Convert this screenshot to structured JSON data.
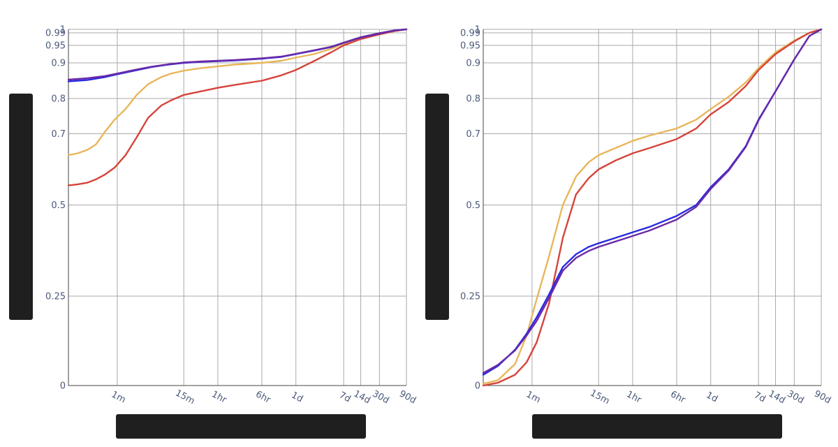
{
  "chart_data": [
    {
      "type": "line",
      "title": "",
      "xlabel": "",
      "ylabel": "",
      "xscale": "log-time",
      "x_ticks": [
        {
          "label": "1m",
          "value": 1
        },
        {
          "label": "15m",
          "value": 15
        },
        {
          "label": "1hr",
          "value": 60
        },
        {
          "label": "6hr",
          "value": 360
        },
        {
          "label": "1d",
          "value": 1440
        },
        {
          "label": "7d",
          "value": 10080
        },
        {
          "label": "14d",
          "value": 20160
        },
        {
          "label": "30d",
          "value": 43200
        },
        {
          "label": "90d",
          "value": 129600
        }
      ],
      "y_ticks": [
        {
          "label": "0",
          "value": 0
        },
        {
          "label": "0.25",
          "value": 0.25
        },
        {
          "label": "0.5",
          "value": 0.5
        },
        {
          "label": "0.7",
          "value": 0.7
        },
        {
          "label": "0.8",
          "value": 0.8
        },
        {
          "label": "0.9",
          "value": 0.9
        },
        {
          "label": "0.95",
          "value": 0.95
        },
        {
          "label": "0.99",
          "value": 0.99
        },
        {
          "label": "1",
          "value": 1
        }
      ],
      "grid": true,
      "series": [
        {
          "color": "#e8b65a",
          "x": [
            0.137,
            0.2,
            0.3,
            0.42,
            0.6,
            0.9,
            1.4,
            2.2,
            3.5,
            6,
            9,
            15,
            30,
            60,
            120,
            360,
            800,
            1440,
            3000,
            6000,
            10080,
            20160,
            43200,
            80000,
            129600
          ],
          "y": [
            0.64,
            0.645,
            0.655,
            0.67,
            0.705,
            0.74,
            0.77,
            0.81,
            0.84,
            0.86,
            0.87,
            0.878,
            0.885,
            0.89,
            0.895,
            0.9,
            0.906,
            0.915,
            0.925,
            0.94,
            0.955,
            0.972,
            0.985,
            0.995,
            1.0
          ]
        },
        {
          "color": "#d5443a",
          "x": [
            0.137,
            0.2,
            0.3,
            0.42,
            0.6,
            0.9,
            1.4,
            2.2,
            3.5,
            6,
            9,
            15,
            30,
            60,
            120,
            360,
            800,
            1440,
            3000,
            6000,
            10080,
            20160,
            43200,
            80000,
            129600
          ],
          "y": [
            0.555,
            0.558,
            0.563,
            0.572,
            0.585,
            0.605,
            0.64,
            0.69,
            0.745,
            0.78,
            0.795,
            0.81,
            0.82,
            0.83,
            0.838,
            0.85,
            0.865,
            0.88,
            0.905,
            0.93,
            0.95,
            0.97,
            0.985,
            0.995,
            1.0
          ]
        },
        {
          "color": "#2a2ae0",
          "x": [
            0.137,
            0.3,
            0.6,
            1,
            2,
            4,
            8,
            15,
            30,
            60,
            120,
            360,
            800,
            1440,
            3000,
            6000,
            10080,
            20160,
            43200,
            80000,
            129600
          ],
          "y": [
            0.848,
            0.852,
            0.86,
            0.868,
            0.878,
            0.888,
            0.895,
            0.9,
            0.903,
            0.905,
            0.907,
            0.912,
            0.917,
            0.925,
            0.935,
            0.945,
            0.958,
            0.975,
            0.988,
            0.997,
            1.0
          ]
        },
        {
          "color": "#6a2aa8",
          "x": [
            0.137,
            0.3,
            0.6,
            1,
            2,
            4,
            8,
            15,
            30,
            60,
            120,
            360,
            800,
            1440,
            3000,
            6000,
            10080,
            20160,
            43200,
            80000,
            129600
          ],
          "y": [
            0.853,
            0.857,
            0.863,
            0.87,
            0.88,
            0.889,
            0.896,
            0.901,
            0.904,
            0.906,
            0.908,
            0.913,
            0.918,
            0.926,
            0.936,
            0.946,
            0.959,
            0.976,
            0.989,
            0.997,
            1.0
          ]
        }
      ]
    },
    {
      "type": "line",
      "title": "",
      "xlabel": "",
      "ylabel": "",
      "xscale": "log-time",
      "x_ticks": [
        {
          "label": "1m",
          "value": 1
        },
        {
          "label": "15m",
          "value": 15
        },
        {
          "label": "1hr",
          "value": 60
        },
        {
          "label": "6hr",
          "value": 360
        },
        {
          "label": "1d",
          "value": 1440
        },
        {
          "label": "7d",
          "value": 10080
        },
        {
          "label": "14d",
          "value": 20160
        },
        {
          "label": "30d",
          "value": 43200
        },
        {
          "label": "90d",
          "value": 129600
        }
      ],
      "y_ticks": [
        {
          "label": "0",
          "value": 0
        },
        {
          "label": "0.25",
          "value": 0.25
        },
        {
          "label": "0.5",
          "value": 0.5
        },
        {
          "label": "0.7",
          "value": 0.7
        },
        {
          "label": "0.8",
          "value": 0.8
        },
        {
          "label": "0.9",
          "value": 0.9
        },
        {
          "label": "0.95",
          "value": 0.95
        },
        {
          "label": "0.99",
          "value": 0.99
        },
        {
          "label": "1",
          "value": 1
        }
      ],
      "grid": true,
      "series": [
        {
          "color": "#e8b65a",
          "x": [
            0.137,
            0.25,
            0.5,
            0.8,
            1.2,
            2,
            3.5,
            6,
            10,
            15,
            30,
            60,
            120,
            360,
            800,
            1440,
            3000,
            6000,
            10080,
            20160,
            43200,
            80000,
            129600
          ],
          "y": [
            0.005,
            0.015,
            0.06,
            0.14,
            0.24,
            0.36,
            0.5,
            0.58,
            0.62,
            0.64,
            0.66,
            0.68,
            0.695,
            0.715,
            0.74,
            0.77,
            0.805,
            0.845,
            0.885,
            0.93,
            0.965,
            0.99,
            1.0
          ]
        },
        {
          "color": "#d5443a",
          "x": [
            0.137,
            0.25,
            0.5,
            0.8,
            1.2,
            2,
            3.5,
            6,
            10,
            15,
            30,
            60,
            120,
            360,
            800,
            1440,
            3000,
            6000,
            10080,
            20160,
            43200,
            80000,
            129600
          ],
          "y": [
            0.0,
            0.008,
            0.03,
            0.065,
            0.12,
            0.23,
            0.41,
            0.53,
            0.575,
            0.6,
            0.625,
            0.645,
            0.66,
            0.685,
            0.715,
            0.755,
            0.79,
            0.835,
            0.88,
            0.925,
            0.963,
            0.99,
            1.0
          ]
        },
        {
          "color": "#2a2ae0",
          "x": [
            0.137,
            0.25,
            0.5,
            0.8,
            1.2,
            2,
            3.5,
            6,
            10,
            15,
            30,
            60,
            120,
            360,
            800,
            1440,
            3000,
            6000,
            10080,
            20160,
            43200,
            80000,
            129600
          ],
          "y": [
            0.03,
            0.055,
            0.1,
            0.145,
            0.19,
            0.255,
            0.33,
            0.365,
            0.385,
            0.395,
            0.41,
            0.425,
            0.44,
            0.47,
            0.5,
            0.55,
            0.6,
            0.665,
            0.74,
            0.82,
            0.91,
            0.98,
            1.0
          ]
        },
        {
          "color": "#6a2aa8",
          "x": [
            0.137,
            0.25,
            0.5,
            0.8,
            1.2,
            2,
            3.5,
            6,
            10,
            15,
            30,
            60,
            120,
            360,
            800,
            1440,
            3000,
            6000,
            10080,
            20160,
            43200,
            80000,
            129600
          ],
          "y": [
            0.035,
            0.058,
            0.098,
            0.14,
            0.18,
            0.245,
            0.32,
            0.355,
            0.374,
            0.385,
            0.4,
            0.415,
            0.43,
            0.46,
            0.495,
            0.545,
            0.597,
            0.663,
            0.738,
            0.82,
            0.91,
            0.98,
            1.0
          ]
        }
      ]
    }
  ]
}
